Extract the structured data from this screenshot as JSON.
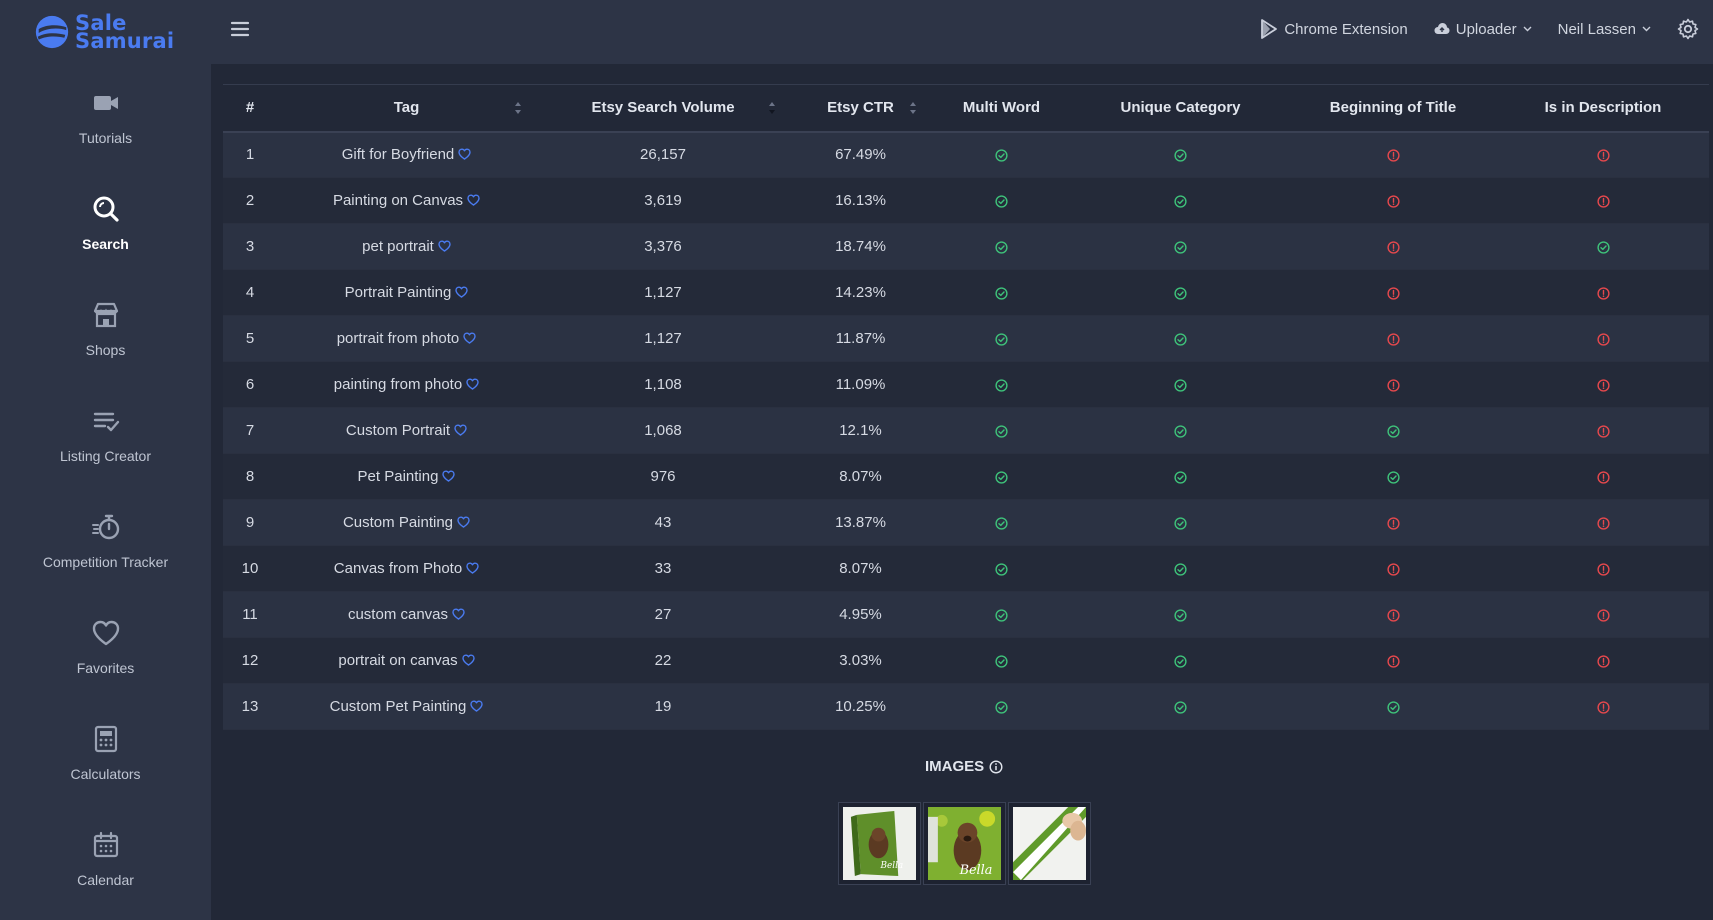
{
  "brand": {
    "line1": "Sale",
    "line2": "Samurai",
    "color": "#4a7bf0"
  },
  "sidebar": {
    "items": [
      {
        "label": "Tutorials",
        "icon": "video-camera-icon",
        "active": false
      },
      {
        "label": "Search",
        "icon": "search-icon",
        "active": true
      },
      {
        "label": "Shops",
        "icon": "store-icon",
        "active": false
      },
      {
        "label": "Listing Creator",
        "icon": "list-check-icon",
        "active": false
      },
      {
        "label": "Competition Tracker",
        "icon": "stopwatch-icon",
        "active": false
      },
      {
        "label": "Favorites",
        "icon": "heart-icon",
        "active": false
      },
      {
        "label": "Calculators",
        "icon": "calculator-icon",
        "active": false
      },
      {
        "label": "Calendar",
        "icon": "calendar-icon",
        "active": false
      }
    ]
  },
  "topbar": {
    "chrome_extension": "Chrome Extension",
    "uploader": "Uploader",
    "user": "Neil Lassen"
  },
  "table": {
    "headers": [
      "#",
      "Tag",
      "Etsy Search Volume",
      "Etsy CTR",
      "Multi Word",
      "Unique Category",
      "Beginning of Title",
      "Is in Description"
    ],
    "rows": [
      {
        "n": "1",
        "tag": "Gift for Boyfriend",
        "volume": "26,157",
        "ctr": "67.49%",
        "multi": true,
        "unique": true,
        "begin": false,
        "desc": false
      },
      {
        "n": "2",
        "tag": "Painting on Canvas",
        "volume": "3,619",
        "ctr": "16.13%",
        "multi": true,
        "unique": true,
        "begin": false,
        "desc": false
      },
      {
        "n": "3",
        "tag": "pet portrait",
        "volume": "3,376",
        "ctr": "18.74%",
        "multi": true,
        "unique": true,
        "begin": false,
        "desc": true
      },
      {
        "n": "4",
        "tag": "Portrait Painting",
        "volume": "1,127",
        "ctr": "14.23%",
        "multi": true,
        "unique": true,
        "begin": false,
        "desc": false
      },
      {
        "n": "5",
        "tag": "portrait from photo",
        "volume": "1,127",
        "ctr": "11.87%",
        "multi": true,
        "unique": true,
        "begin": false,
        "desc": false
      },
      {
        "n": "6",
        "tag": "painting from photo",
        "volume": "1,108",
        "ctr": "11.09%",
        "multi": true,
        "unique": true,
        "begin": false,
        "desc": false
      },
      {
        "n": "7",
        "tag": "Custom Portrait",
        "volume": "1,068",
        "ctr": "12.1%",
        "multi": true,
        "unique": true,
        "begin": true,
        "desc": false
      },
      {
        "n": "8",
        "tag": "Pet Painting",
        "volume": "976",
        "ctr": "8.07%",
        "multi": true,
        "unique": true,
        "begin": true,
        "desc": false
      },
      {
        "n": "9",
        "tag": "Custom Painting",
        "volume": "43",
        "ctr": "13.87%",
        "multi": true,
        "unique": true,
        "begin": false,
        "desc": false
      },
      {
        "n": "10",
        "tag": "Canvas from Photo",
        "volume": "33",
        "ctr": "8.07%",
        "multi": true,
        "unique": true,
        "begin": false,
        "desc": false
      },
      {
        "n": "11",
        "tag": "custom canvas",
        "volume": "27",
        "ctr": "4.95%",
        "multi": true,
        "unique": true,
        "begin": false,
        "desc": false
      },
      {
        "n": "12",
        "tag": "portrait on canvas",
        "volume": "22",
        "ctr": "3.03%",
        "multi": true,
        "unique": true,
        "begin": false,
        "desc": false
      },
      {
        "n": "13",
        "tag": "Custom Pet Painting",
        "volume": "19",
        "ctr": "10.25%",
        "multi": true,
        "unique": true,
        "begin": true,
        "desc": false
      }
    ]
  },
  "images": {
    "title": "IMAGES",
    "thumbs": [
      {
        "name": "canvas-dog-bella-thumb",
        "caption": "Bella"
      },
      {
        "name": "dog-portrait-bella-thumb",
        "caption": "Bella"
      },
      {
        "name": "canvas-corner-thumb",
        "caption": ""
      }
    ]
  },
  "colors": {
    "ok": "#3ec27a",
    "bad": "#e5484d",
    "heart": "#4a7bf0"
  }
}
